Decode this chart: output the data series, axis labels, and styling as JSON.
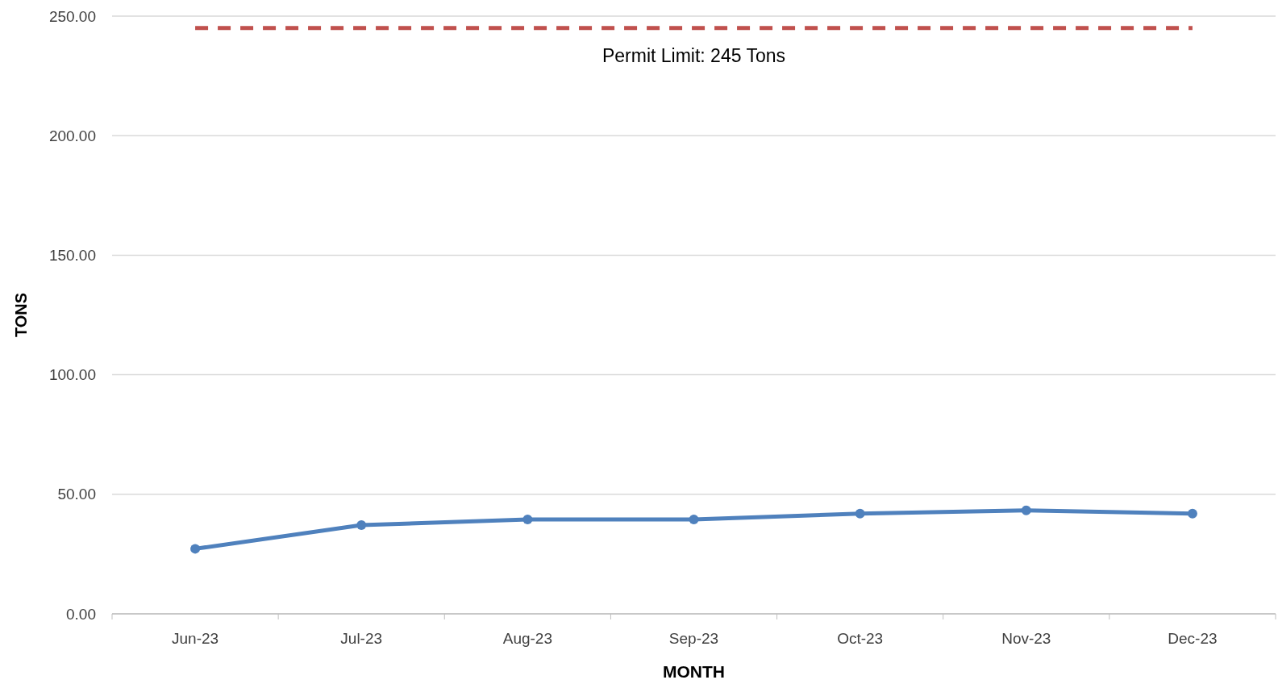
{
  "chart_data": {
    "type": "line",
    "xlabel": "MONTH",
    "ylabel": "TONS",
    "categories": [
      "Jun-23",
      "Jul-23",
      "Aug-23",
      "Sep-23",
      "Oct-23",
      "Nov-23",
      "Dec-23"
    ],
    "series": [
      {
        "color": "#4f81bd",
        "values": [
          27.2,
          37.1,
          39.5,
          39.5,
          41.9,
          43.3,
          41.9
        ],
        "marker": "circle",
        "line_style": "solid"
      },
      {
        "color": "#c0504d",
        "values": [
          245,
          245,
          245,
          245,
          245,
          245,
          245
        ],
        "marker": "none",
        "line_style": "dashed"
      }
    ],
    "ylim": [
      0,
      250
    ],
    "yticks": [
      {
        "value": 0,
        "label": "0.00"
      },
      {
        "value": 50,
        "label": "50.00"
      },
      {
        "value": 100,
        "label": "100.00"
      },
      {
        "value": 150,
        "label": "150.00"
      },
      {
        "value": 200,
        "label": "200.00"
      },
      {
        "value": 250,
        "label": "250.00"
      }
    ],
    "grid": "y",
    "annotations": [
      "Permit Limit: 245 Tons"
    ]
  }
}
